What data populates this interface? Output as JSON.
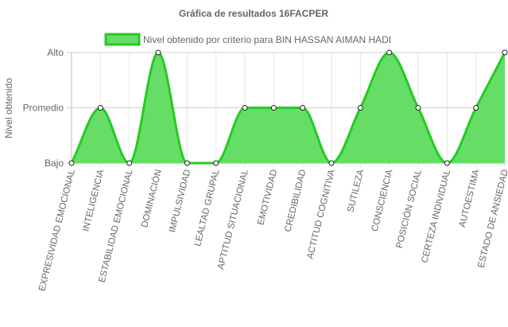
{
  "chart_data": {
    "type": "area",
    "title": "Gráfica de resultados 16FACPER",
    "ylabel": "Nivel obtenido",
    "xlabel": "",
    "y_levels": [
      "Bajo",
      "Promedio",
      "Alto"
    ],
    "ylim": [
      0,
      2
    ],
    "legend_position": "top",
    "categories": [
      "EXPRESIVIDAD EMOCIONAL",
      "INTELIGENCIA",
      "ESTABILIDAD EMOCIONAL",
      "DOMINACIÓN",
      "IMPULSIVIDAD",
      "LEALTAD GRUPAL",
      "APTITUD SITUACIONAL",
      "EMOTIVIDAD",
      "CREDIBILIDAD",
      "ACTITUD COGNITIVA",
      "SUTILEZA",
      "CONSCIENCIA",
      "POSICIÓN SOCIAL",
      "CERTEZA INDIVIDUAL",
      "AUTOESTIMA",
      "ESTADO DE ANSIEDAD"
    ],
    "series": [
      {
        "name": "Nivel obtenido por criterio para BIN HASSAN AIMAN HADI",
        "values": [
          0,
          1,
          0,
          2,
          0,
          0,
          1,
          1,
          1,
          0,
          1,
          2,
          1,
          0,
          1,
          2
        ],
        "fill_color": "#66dd66",
        "line_color": "#22cc22"
      }
    ]
  }
}
